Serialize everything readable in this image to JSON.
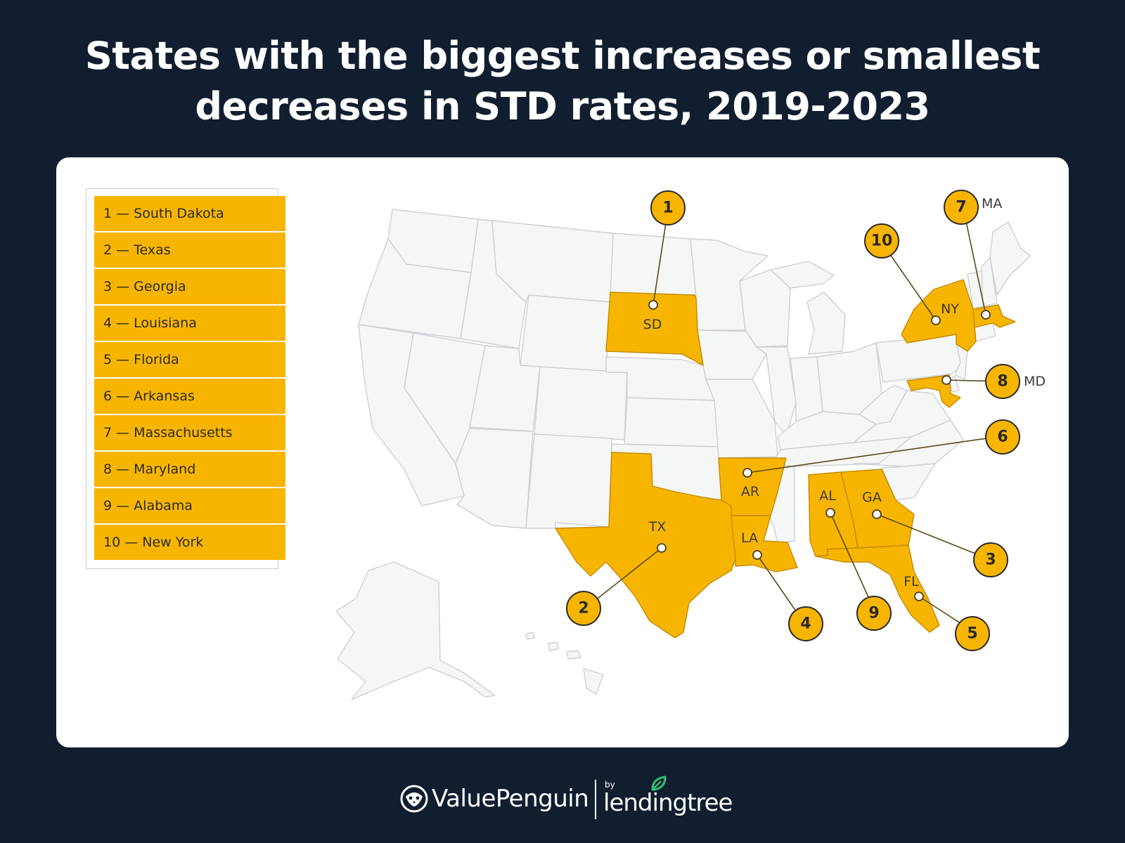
{
  "title": {
    "line1": "States with the biggest increases or smallest",
    "line2": "decreases in STD rates, 2019-2023"
  },
  "legend": [
    {
      "rank": 1,
      "label": "1 — South Dakota"
    },
    {
      "rank": 2,
      "label": "2 — Texas"
    },
    {
      "rank": 3,
      "label": "3 — Georgia"
    },
    {
      "rank": 4,
      "label": "4 — Louisiana"
    },
    {
      "rank": 5,
      "label": "5 — Florida"
    },
    {
      "rank": 6,
      "label": "6 — Arkansas"
    },
    {
      "rank": 7,
      "label": "7 — Massachusetts"
    },
    {
      "rank": 8,
      "label": "8 — Maryland"
    },
    {
      "rank": 9,
      "label": "9 — Alabama"
    },
    {
      "rank": 10,
      "label": "10 — New York"
    }
  ],
  "map": {
    "highlight_color": "#f8b500",
    "base_color": "#f5f6f6",
    "markers": [
      {
        "rank": "1",
        "state": "SD"
      },
      {
        "rank": "2",
        "state": "TX"
      },
      {
        "rank": "3",
        "state": "GA"
      },
      {
        "rank": "4",
        "state": "LA"
      },
      {
        "rank": "5",
        "state": "FL"
      },
      {
        "rank": "6",
        "state": "AR"
      },
      {
        "rank": "7",
        "state": "MA"
      },
      {
        "rank": "8",
        "state": "MD"
      },
      {
        "rank": "9",
        "state": "AL"
      },
      {
        "rank": "10",
        "state": "NY"
      }
    ],
    "labels": {
      "SD": "SD",
      "TX": "TX",
      "GA": "GA",
      "LA": "LA",
      "FL": "FL",
      "AR": "AR",
      "AL": "AL",
      "NY": "NY",
      "MA": "MA",
      "MD": "MD"
    }
  },
  "footer": {
    "brand": "ValuePenguin",
    "by": "by",
    "partner": "lendingtree"
  },
  "colors": {
    "background": "#111e30",
    "card": "#ffffff",
    "accent": "#f8b500",
    "leaf": "#2fbf71"
  },
  "icons": {
    "brand_logo": "penguin-icon",
    "partner_logo": "leaf-icon"
  }
}
